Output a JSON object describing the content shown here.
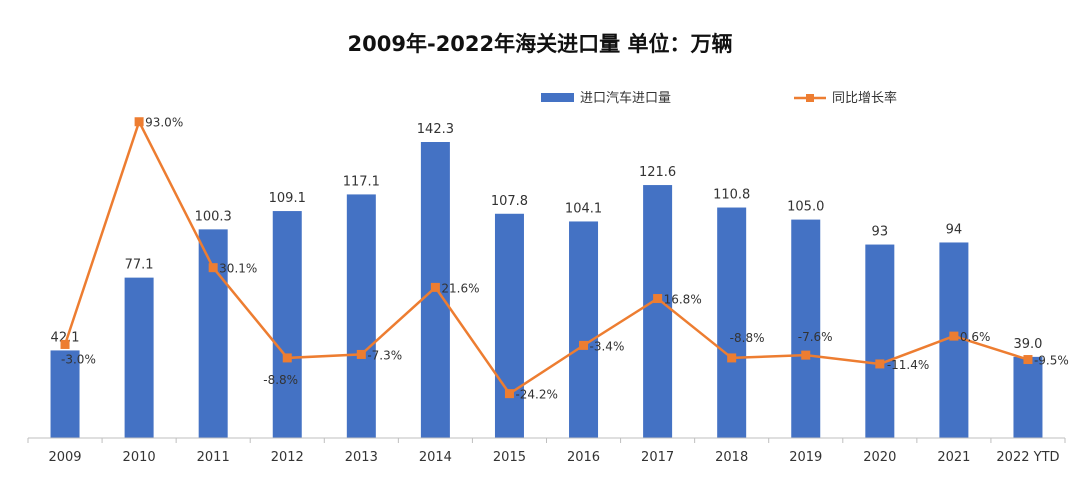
{
  "chart_data": {
    "type": "bar",
    "title": "2009年-2022年海关进口量 单位：万辆",
    "categories": [
      "2009",
      "2010",
      "2011",
      "2012",
      "2013",
      "2014",
      "2015",
      "2016",
      "2017",
      "2018",
      "2019",
      "2020",
      "2021",
      "2022 YTD"
    ],
    "series": [
      {
        "name": "进口汽车进口量",
        "type": "bar",
        "color": "#4472C4",
        "values": [
          42.1,
          77.1,
          100.3,
          109.1,
          117.1,
          142.3,
          107.8,
          104.1,
          121.6,
          110.8,
          105.0,
          93,
          94,
          39.0
        ],
        "labels": [
          "42.1",
          "77.1",
          "100.3",
          "109.1",
          "117.1",
          "142.3",
          "107.8",
          "104.1",
          "121.6",
          "110.8",
          "105.0",
          "93",
          "94",
          "39.0"
        ]
      },
      {
        "name": "同比增长率",
        "type": "line",
        "color": "#ED7D31",
        "marker": "square",
        "values": [
          -3.0,
          93.0,
          30.1,
          -8.8,
          -7.3,
          21.6,
          -24.2,
          -3.4,
          16.8,
          -8.8,
          -7.6,
          -11.4,
          0.6,
          -9.5
        ],
        "labels": [
          "-3.0%",
          "93.0%",
          "30.1%",
          "-8.8%",
          "-7.3%",
          "21.6%",
          "-24.2%",
          "-3.4%",
          "16.8%",
          "-8.8%",
          "-7.6%",
          "-11.4%",
          "0.6%",
          "-9.5%"
        ]
      }
    ],
    "grid": false,
    "legend": "top"
  }
}
